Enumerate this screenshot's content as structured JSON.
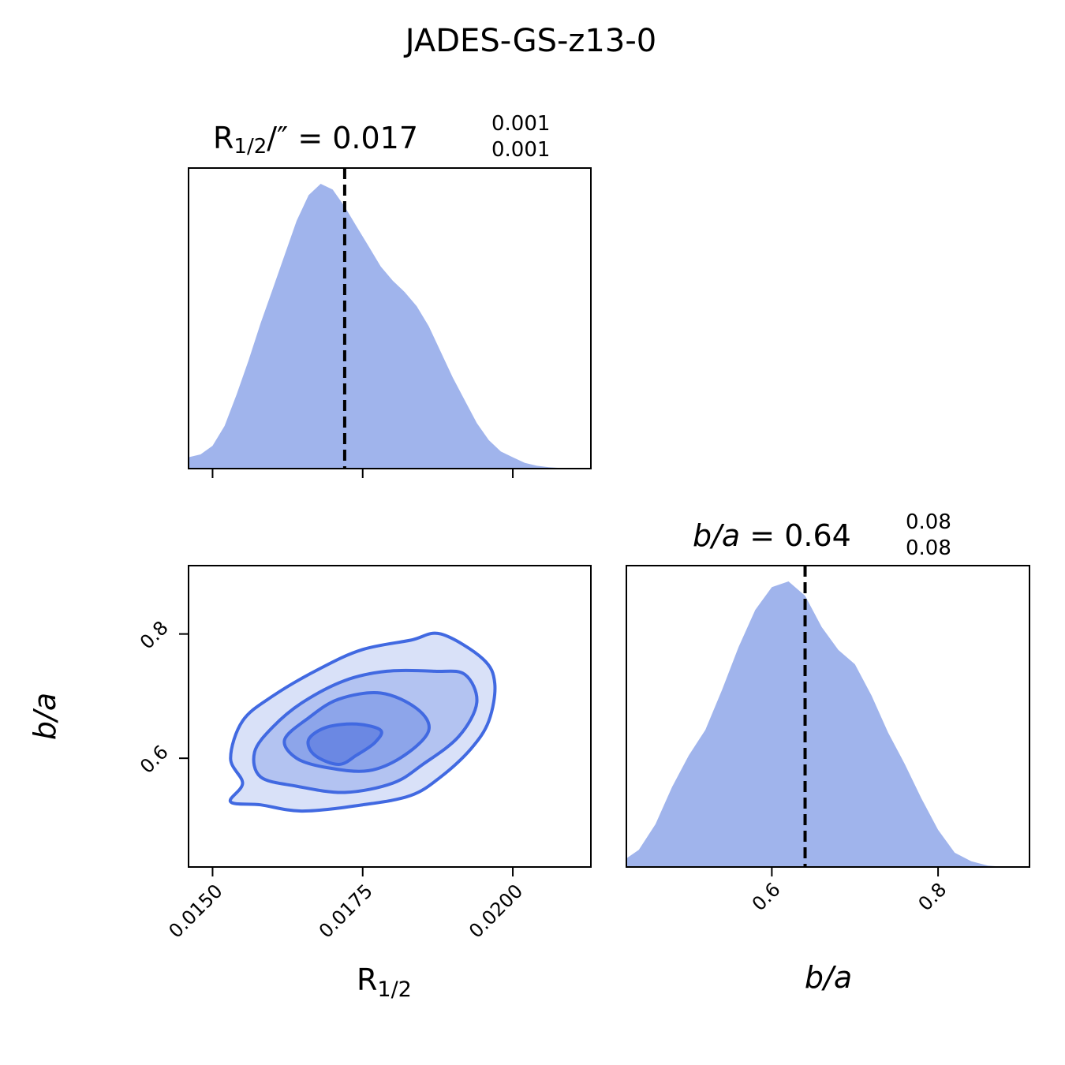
{
  "figure_title": "JADES-GS-z13-0",
  "colors": {
    "hist_fill": "#a0b4ec",
    "contour_line": "#4169e1",
    "contour_fills": [
      "#d9e1f8",
      "#b3c3f1",
      "#8da5ea",
      "#6b88e3"
    ],
    "median_line": "#000000"
  },
  "panels": {
    "r_hist": {
      "title_main": "R",
      "title_sub": "1/2",
      "title_rest": "/″ = 0.017",
      "title_sup": "0.001",
      "title_lo": "0.001"
    },
    "ba_hist": {
      "title_main": "b/a",
      "title_rest": " = 0.64",
      "title_sup": "0.08",
      "title_lo": "0.08"
    },
    "x_label_main": "R",
    "x_label_sub": "1/2",
    "y_label": "b/a",
    "ba_x_label": "b/a"
  },
  "chart_data": {
    "type": "corner",
    "parameters": [
      "R_1/2",
      "b/a"
    ],
    "R_half": {
      "range": [
        0.0146,
        0.0213
      ],
      "median": 0.0172,
      "ticks": [
        0.015,
        0.0175,
        0.02
      ],
      "tick_labels": [
        "0.0150",
        "0.0175",
        "0.0200"
      ],
      "hist_x": [
        0.0146,
        0.0148,
        0.015,
        0.0152,
        0.0154,
        0.0156,
        0.0158,
        0.016,
        0.0162,
        0.0164,
        0.0166,
        0.0168,
        0.017,
        0.0172,
        0.0174,
        0.0176,
        0.0178,
        0.018,
        0.0182,
        0.0184,
        0.0186,
        0.0188,
        0.019,
        0.0192,
        0.0194,
        0.0196,
        0.0198,
        0.02,
        0.0202,
        0.0204,
        0.0206,
        0.0208,
        0.021,
        0.0213
      ],
      "hist_y": [
        0.04,
        0.05,
        0.08,
        0.15,
        0.26,
        0.38,
        0.51,
        0.63,
        0.75,
        0.87,
        0.96,
        1.0,
        0.98,
        0.92,
        0.85,
        0.78,
        0.71,
        0.66,
        0.62,
        0.57,
        0.5,
        0.41,
        0.32,
        0.24,
        0.16,
        0.1,
        0.06,
        0.04,
        0.02,
        0.01,
        0.005,
        0.002,
        0.0,
        0.0
      ]
    },
    "b_over_a": {
      "range": [
        0.425,
        0.91
      ],
      "median": 0.64,
      "ticks": [
        0.6,
        0.8
      ],
      "tick_labels": [
        "0.6",
        "0.8"
      ],
      "hist_x": [
        0.425,
        0.44,
        0.46,
        0.48,
        0.5,
        0.52,
        0.54,
        0.56,
        0.58,
        0.6,
        0.62,
        0.64,
        0.66,
        0.68,
        0.7,
        0.72,
        0.74,
        0.76,
        0.78,
        0.8,
        0.82,
        0.84,
        0.86,
        0.88,
        0.91
      ],
      "hist_y": [
        0.03,
        0.06,
        0.15,
        0.28,
        0.39,
        0.48,
        0.62,
        0.77,
        0.9,
        0.98,
        1.0,
        0.95,
        0.84,
        0.76,
        0.71,
        0.6,
        0.47,
        0.36,
        0.24,
        0.13,
        0.05,
        0.02,
        0.005,
        0.0,
        0.0
      ]
    },
    "contours_2d": {
      "levels": [
        [
          [
            0.0158,
            0.525
          ],
          [
            0.0165,
            0.515
          ],
          [
            0.0175,
            0.525
          ],
          [
            0.0183,
            0.54
          ],
          [
            0.0188,
            0.57
          ],
          [
            0.0193,
            0.615
          ],
          [
            0.0196,
            0.66
          ],
          [
            0.0197,
            0.72
          ],
          [
            0.0195,
            0.76
          ],
          [
            0.0188,
            0.8
          ],
          [
            0.0183,
            0.79
          ],
          [
            0.0175,
            0.775
          ],
          [
            0.0168,
            0.745
          ],
          [
            0.016,
            0.7
          ],
          [
            0.0155,
            0.66
          ],
          [
            0.0153,
            0.6
          ],
          [
            0.0155,
            0.56
          ],
          [
            0.0153,
            0.53
          ]
        ],
        [
          [
            0.0164,
            0.555
          ],
          [
            0.0172,
            0.545
          ],
          [
            0.018,
            0.56
          ],
          [
            0.0185,
            0.59
          ],
          [
            0.0191,
            0.635
          ],
          [
            0.0194,
            0.69
          ],
          [
            0.0192,
            0.735
          ],
          [
            0.0187,
            0.74
          ],
          [
            0.0179,
            0.74
          ],
          [
            0.0172,
            0.725
          ],
          [
            0.0165,
            0.69
          ],
          [
            0.016,
            0.65
          ],
          [
            0.0157,
            0.61
          ],
          [
            0.0158,
            0.57
          ]
        ],
        [
          [
            0.0169,
            0.585
          ],
          [
            0.0176,
            0.58
          ],
          [
            0.0182,
            0.605
          ],
          [
            0.0186,
            0.645
          ],
          [
            0.0184,
            0.68
          ],
          [
            0.0178,
            0.705
          ],
          [
            0.0171,
            0.695
          ],
          [
            0.0166,
            0.665
          ],
          [
            0.0162,
            0.63
          ],
          [
            0.0164,
            0.6
          ]
        ],
        [
          [
            0.0171,
            0.59
          ],
          [
            0.0174,
            0.605
          ],
          [
            0.0177,
            0.625
          ],
          [
            0.0178,
            0.645
          ],
          [
            0.0174,
            0.655
          ],
          [
            0.0169,
            0.65
          ],
          [
            0.0166,
            0.63
          ],
          [
            0.0167,
            0.605
          ]
        ]
      ]
    }
  }
}
